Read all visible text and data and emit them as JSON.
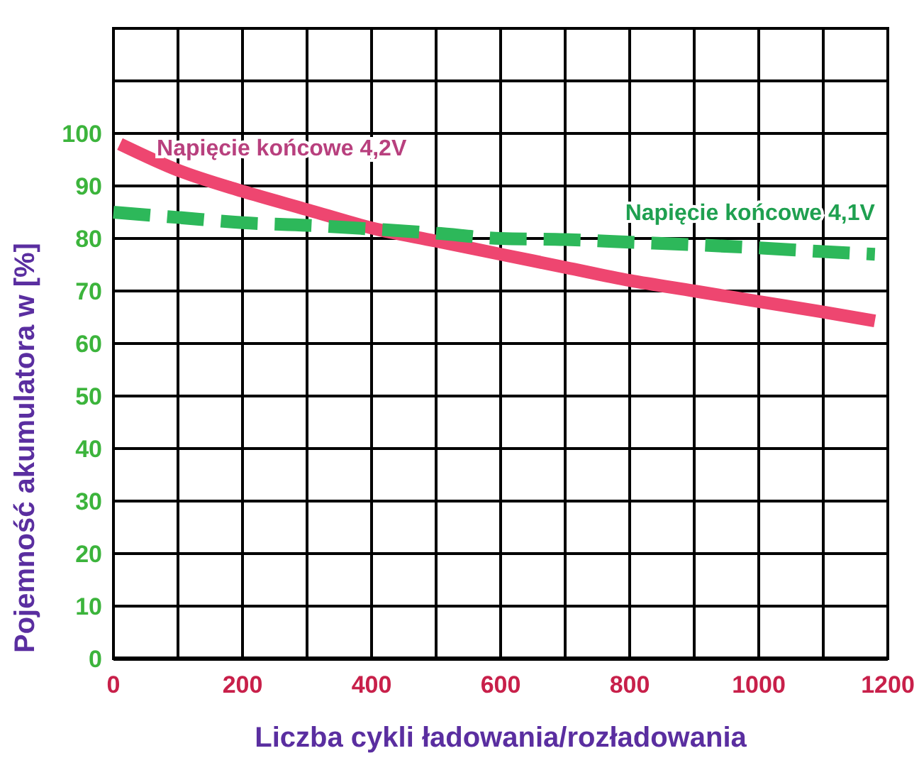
{
  "chart_data": {
    "type": "line",
    "xlabel": "Liczba cykli ładowania/rozładowania",
    "ylabel": "Pojemność akumulatora w [%]",
    "xlim": [
      0,
      1200
    ],
    "xticks": [
      0,
      {
        "value": 100,
        "label": null
      },
      200,
      {
        "value": 300,
        "label": null
      },
      400,
      {
        "value": 500,
        "label": null
      },
      600,
      {
        "value": 700,
        "label": null
      },
      800,
      {
        "value": 900,
        "label": null
      },
      1000,
      {
        "value": 1100,
        "label": null
      },
      1200
    ],
    "ylim": [
      0,
      120
    ],
    "yticks": [
      0,
      10,
      20,
      30,
      40,
      50,
      60,
      70,
      80,
      90,
      100,
      {
        "value": 110,
        "label": null
      },
      {
        "value": 120,
        "label": null
      }
    ],
    "grid": true,
    "marker": "none",
    "series": [
      {
        "name": "Napięcie końcowe 4,2V",
        "color": "#ee4670",
        "line_style": "solid",
        "x": [
          10,
          100,
          200,
          300,
          400,
          500,
          600,
          700,
          800,
          900,
          1000,
          1100,
          1180
        ],
        "values": [
          98,
          93,
          89,
          85.5,
          82,
          79.5,
          77,
          74.5,
          72,
          70,
          68,
          66,
          64.3
        ]
      },
      {
        "name": "Napięcie końcowe 4,1V",
        "color": "#2db85a",
        "line_style": "dashed",
        "x": [
          0,
          100,
          200,
          300,
          400,
          500,
          600,
          700,
          800,
          900,
          1000,
          1100,
          1180
        ],
        "values": [
          85,
          84,
          83,
          82.5,
          81.8,
          81,
          80,
          79.8,
          79.3,
          78.8,
          78.2,
          77.5,
          77
        ]
      }
    ]
  }
}
